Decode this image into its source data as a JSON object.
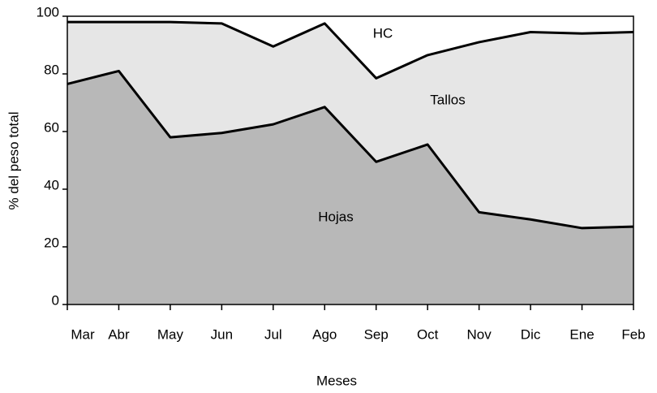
{
  "chart_data": {
    "type": "stacked_area",
    "x_label": "Meses",
    "y_label": "% del peso total",
    "categories": [
      "Mar",
      "Abr",
      "May",
      "Jun",
      "Jul",
      "Ago",
      "Sep",
      "Oct",
      "Nov",
      "Dic",
      "Ene",
      "Feb"
    ],
    "series": [
      {
        "name": "Hojas",
        "color": "#b8b8b8",
        "values": [
          76.5,
          81,
          58,
          59.5,
          62.5,
          68.5,
          49.5,
          55.5,
          32,
          29.5,
          26.5,
          27
        ]
      },
      {
        "name": "Tallos",
        "color": "#e6e6e6",
        "values": [
          21.5,
          17,
          40,
          38,
          27,
          29,
          29,
          31,
          59,
          65,
          67.5,
          67.5
        ]
      },
      {
        "name": "HC",
        "color": "#ffffff",
        "values": [
          2,
          2,
          2,
          2.5,
          10.5,
          2.5,
          21.5,
          13.5,
          9,
          5.5,
          6,
          5.5
        ]
      }
    ],
    "ylim": [
      0,
      100
    ],
    "yticks": [
      0,
      20,
      40,
      60,
      80,
      100
    ]
  }
}
